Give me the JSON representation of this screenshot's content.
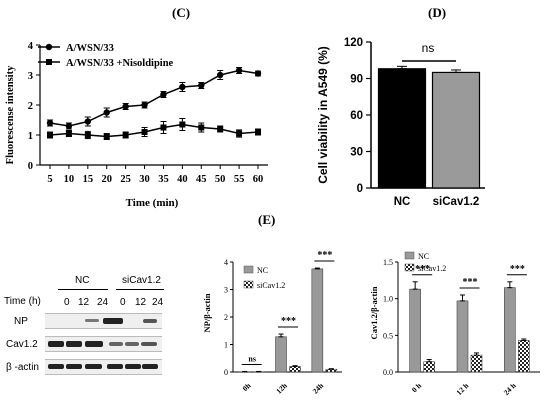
{
  "panels": {
    "C": "(C)",
    "D": "(D)",
    "E": "(E)"
  },
  "chart_data": [
    {
      "id": "C",
      "type": "line",
      "ylabel": "Fluorescense intensity",
      "xlabel": "Time (min)",
      "x": [
        5,
        10,
        15,
        20,
        25,
        30,
        35,
        40,
        45,
        50,
        55,
        60
      ],
      "ylim": [
        0,
        4
      ],
      "yticks": [
        0,
        1,
        2,
        3,
        4
      ],
      "series": [
        {
          "name": "A/WSN/33",
          "marker": "circle",
          "values": [
            1.4,
            1.3,
            1.45,
            1.75,
            1.95,
            2.0,
            2.35,
            2.6,
            2.65,
            3.0,
            3.15,
            3.05
          ],
          "errors": [
            0.1,
            0.1,
            0.15,
            0.15,
            0.1,
            0.1,
            0.1,
            0.15,
            0.1,
            0.15,
            0.1,
            0.08
          ]
        },
        {
          "name": "A/WSN/33 +Nisoldipine",
          "marker": "square",
          "values": [
            1.0,
            1.05,
            1.0,
            0.95,
            1.0,
            1.1,
            1.25,
            1.35,
            1.25,
            1.2,
            1.05,
            1.1
          ],
          "errors": [
            0.1,
            0.1,
            0.12,
            0.1,
            0.1,
            0.15,
            0.2,
            0.2,
            0.15,
            0.1,
            0.12,
            0.1
          ]
        }
      ]
    },
    {
      "id": "D",
      "type": "bar",
      "ylabel": "Cell viability in A549 (%)",
      "categories": [
        "NC",
        "siCav1.2"
      ],
      "values": [
        98,
        95
      ],
      "errors": [
        2,
        2
      ],
      "colors": [
        "#000000",
        "#9a9a9a"
      ],
      "ylim": [
        0,
        120
      ],
      "yticks": [
        0,
        30,
        60,
        90,
        120
      ],
      "annotation": "ns"
    },
    {
      "id": "E1",
      "type": "bar",
      "ylabel": "NP/β-actin",
      "categories": [
        "0h",
        "12h",
        "24h"
      ],
      "series": [
        {
          "name": "NC",
          "values": [
            0.01,
            1.28,
            3.75
          ],
          "errors": [
            0.01,
            0.1,
            0.03
          ]
        },
        {
          "name": "siCav1.2",
          "values": [
            0.01,
            0.2,
            0.1
          ],
          "errors": [
            0.01,
            0.03,
            0.02
          ]
        }
      ],
      "ylim": [
        0,
        4
      ],
      "yticks": [
        0,
        1,
        2,
        3,
        4
      ],
      "significance": [
        "ns",
        "***",
        "***"
      ]
    },
    {
      "id": "E2",
      "type": "bar",
      "ylabel": "Cav1.2/β-actin",
      "categories": [
        "0 h",
        "12 h",
        "24 h"
      ],
      "series": [
        {
          "name": "NC",
          "values": [
            1.13,
            0.97,
            1.15
          ],
          "errors": [
            0.1,
            0.08,
            0.08
          ]
        },
        {
          "name": "siCav1.2",
          "values": [
            0.14,
            0.23,
            0.43
          ],
          "errors": [
            0.03,
            0.03,
            0.02
          ]
        }
      ],
      "ylim": [
        0,
        1.5
      ],
      "yticks": [
        0.0,
        0.5,
        1.0,
        1.5
      ],
      "ytick_labels": [
        "0.0",
        "0.5",
        "1.0",
        "1.5"
      ],
      "significance": [
        "***",
        "***",
        "***"
      ]
    }
  ],
  "blot": {
    "groups": [
      "NC",
      "siCav1.2"
    ],
    "time_label": "Time (h)",
    "times": [
      "0",
      "12",
      "24",
      "0",
      "12",
      "24"
    ],
    "rows": [
      "NP",
      "Cav1.2",
      "β -actin"
    ]
  }
}
